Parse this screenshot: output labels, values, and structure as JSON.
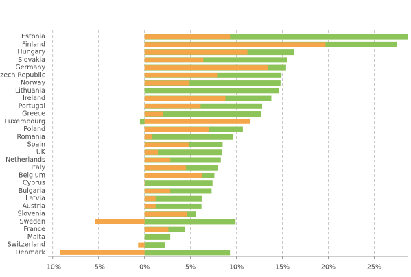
{
  "chart_data": {
    "type": "bar",
    "orientation": "horizontal",
    "overlap": true,
    "categories": [
      "Estonia",
      "Finland",
      "Hungary",
      "Slovakia",
      "Germany",
      "Czech Republic",
      "Norway",
      "Lithuania",
      "Ireland",
      "Portugal",
      "Greece",
      "Luxembourg",
      "Poland",
      "Romania",
      "Spain",
      "UK",
      "Netherlands",
      "Italy",
      "Belgium",
      "Cyprus",
      "Bulgaria",
      "Latvia",
      "Austria",
      "Slovenia",
      "Sweden",
      "France",
      "Malta",
      "Switzerland",
      "Denmark"
    ],
    "series": [
      {
        "color": "#8cc45a",
        "values": [
          28.7,
          27.5,
          16.3,
          15.5,
          15.4,
          14.9,
          14.8,
          14.6,
          13.8,
          12.8,
          12.7,
          -0.5,
          10.7,
          9.6,
          8.5,
          8.4,
          8.3,
          8.0,
          7.6,
          7.4,
          7.3,
          6.3,
          6.2,
          5.6,
          9.9,
          4.4,
          2.8,
          2.2,
          9.3
        ]
      },
      {
        "color": "#f5a64a",
        "values": [
          9.3,
          19.7,
          11.2,
          6.4,
          13.4,
          7.9,
          4.9,
          0,
          8.8,
          6.1,
          2.0,
          11.5,
          7.0,
          0.8,
          4.8,
          1.5,
          2.8,
          4.5,
          6.3,
          0.1,
          2.8,
          1.2,
          1.2,
          4.6,
          -5.4,
          2.6,
          0,
          -0.7,
          -9.2
        ]
      }
    ],
    "xlim": [
      -10.5,
      28.7
    ],
    "xticks": [
      {
        "value": -10,
        "label": "-10%"
      },
      {
        "value": -5,
        "label": "-5%"
      },
      {
        "value": 0,
        "label": "0%"
      },
      {
        "value": 5,
        "label": "5%"
      },
      {
        "value": 10,
        "label": "10%"
      },
      {
        "value": 15,
        "label": "15%"
      },
      {
        "value": 20,
        "label": "20%"
      },
      {
        "value": 25,
        "label": "25%"
      }
    ],
    "grid": true
  }
}
